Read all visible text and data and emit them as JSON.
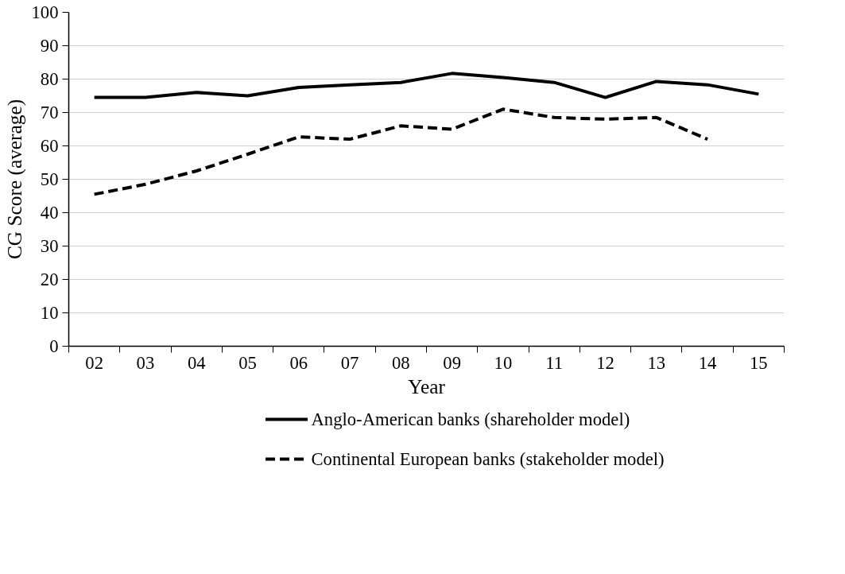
{
  "chart_data": {
    "type": "line",
    "xlabel": "Year",
    "ylabel": "CG Score (average)",
    "categories": [
      "02",
      "03",
      "04",
      "05",
      "06",
      "07",
      "08",
      "09",
      "10",
      "11",
      "12",
      "13",
      "14",
      "15"
    ],
    "ylim": [
      0,
      100
    ],
    "yticks": [
      0,
      10,
      20,
      30,
      40,
      50,
      60,
      70,
      80,
      90,
      100
    ],
    "grid": "y",
    "legend": "bottom",
    "marker": "none",
    "series": [
      {
        "name": "Anglo-American banks (shareholder model)",
        "color": "#000000",
        "line_style": "solid",
        "values": [
          74.5,
          74.5,
          76,
          75,
          77.5,
          78.3,
          79,
          81.7,
          80.5,
          79,
          74.5,
          79.3,
          78.3,
          75.5
        ]
      },
      {
        "name": "Continental European banks (stakeholder model)",
        "color": "#000000",
        "line_style": "dashed",
        "values": [
          45.5,
          48.5,
          52.5,
          57.5,
          62.7,
          62,
          66,
          65,
          71,
          68.5,
          68,
          68.5,
          62,
          null
        ]
      }
    ]
  }
}
